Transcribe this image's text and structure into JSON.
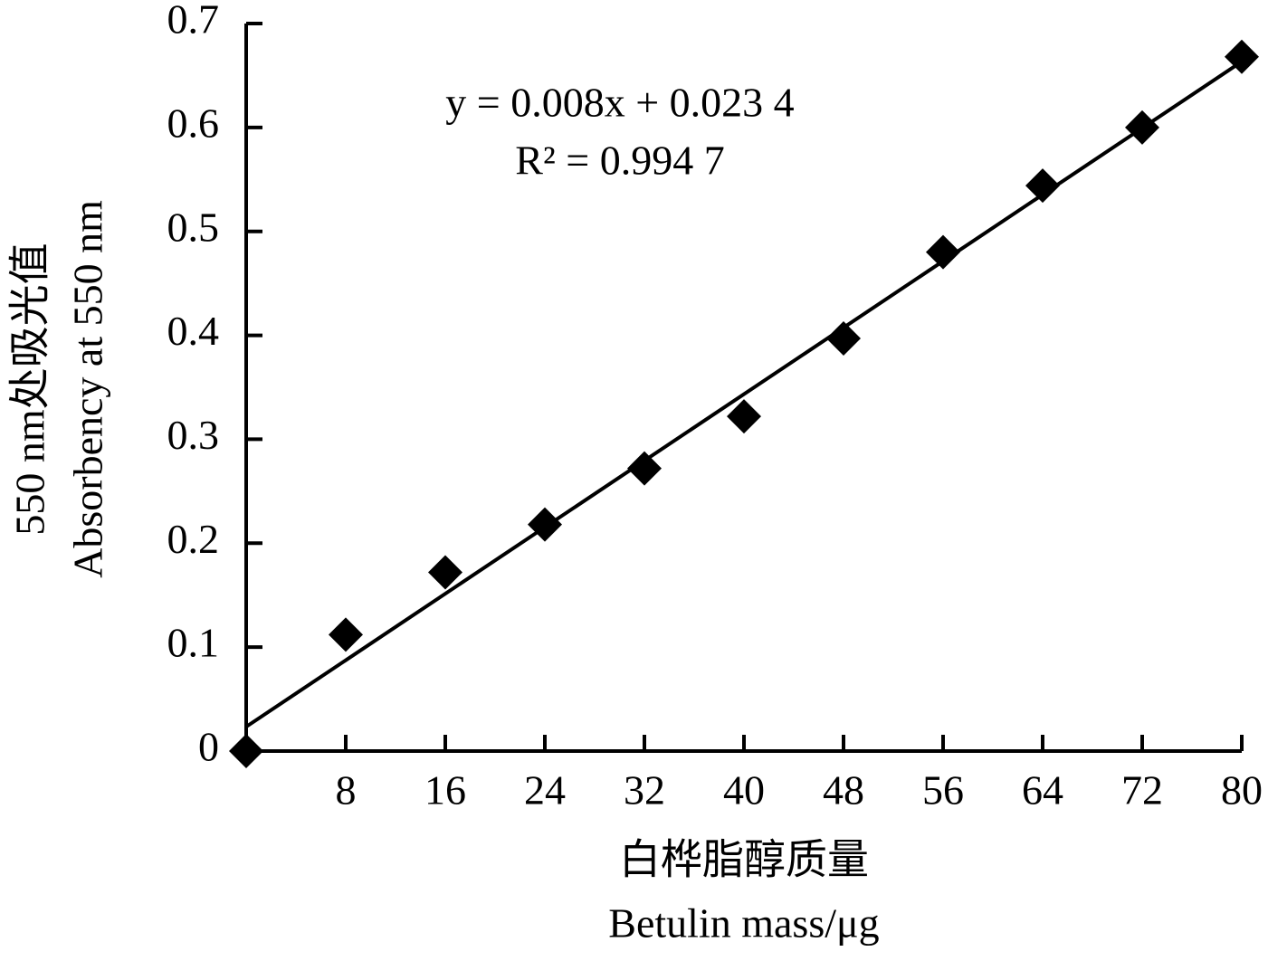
{
  "chart_data": {
    "type": "scatter",
    "x_label": [
      "白桦脂醇质量",
      "Betulin mass/μg"
    ],
    "y_label": [
      "550 nm处吸光值",
      "Absorbency at 550 nm"
    ],
    "x": [
      0,
      8,
      16,
      24,
      32,
      40,
      48,
      56,
      64,
      72,
      80
    ],
    "values": [
      0,
      0.112,
      0.172,
      0.218,
      0.272,
      0.322,
      0.397,
      0.48,
      0.544,
      0.6,
      0.668
    ],
    "color": "#000000",
    "xlim": [
      0,
      80
    ],
    "xticks": [
      8,
      16,
      24,
      32,
      40,
      48,
      56,
      64,
      72,
      80
    ],
    "ylim": [
      0,
      0.7
    ],
    "yticks": [
      0,
      0.1,
      0.2,
      0.3,
      0.4,
      0.5,
      0.6,
      0.7
    ],
    "grid": false,
    "trendline": {
      "slope": 0.008,
      "intercept": 0.0234,
      "equation": "y = 0.008x + 0.023 4",
      "r_squared": "R² = 0.994 7"
    }
  }
}
